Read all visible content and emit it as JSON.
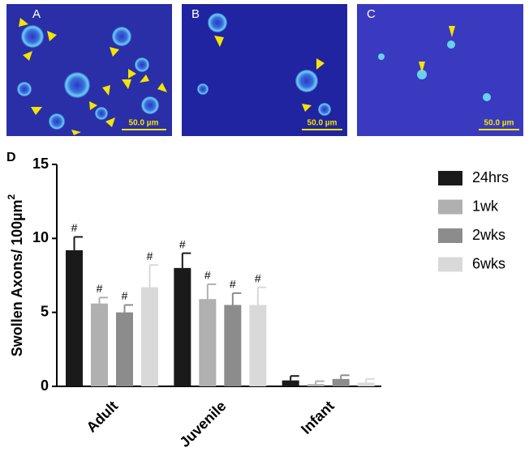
{
  "panels": [
    {
      "label": "A",
      "scale": "50.0 µm"
    },
    {
      "label": "B",
      "scale": "50.0 µm"
    },
    {
      "label": "C",
      "scale": "50.0 µm"
    }
  ],
  "chart_panel_label": "D",
  "chart_data": {
    "type": "bar",
    "ylabel": "Swollen Axons/ 100µm",
    "ylabel_superscript": "2",
    "categories": [
      "Adult",
      "Juvenile",
      "Infant"
    ],
    "series": [
      {
        "name": "24hrs",
        "color": "#1a1a1a",
        "values": [
          9.2,
          8.0,
          0.4
        ],
        "errors": [
          0.9,
          1.0,
          0.3
        ],
        "marks": [
          "#",
          "#",
          null
        ]
      },
      {
        "name": "1wk",
        "color": "#b0b0b0",
        "values": [
          5.6,
          5.9,
          0.15
        ],
        "errors": [
          0.4,
          1.0,
          0.2
        ],
        "marks": [
          "#",
          "#",
          null
        ]
      },
      {
        "name": "2wks",
        "color": "#8c8c8c",
        "values": [
          5.0,
          5.5,
          0.5
        ],
        "errors": [
          0.5,
          0.8,
          0.25
        ],
        "marks": [
          "#",
          "#",
          null
        ]
      },
      {
        "name": "6wks",
        "color": "#d9d9d9",
        "values": [
          6.7,
          5.5,
          0.25
        ],
        "errors": [
          1.5,
          1.2,
          0.25
        ],
        "marks": [
          "#",
          "#",
          null
        ]
      }
    ],
    "ylim": [
      0,
      15
    ],
    "yticks": [
      0,
      5,
      10,
      15
    ],
    "legend": "right"
  }
}
